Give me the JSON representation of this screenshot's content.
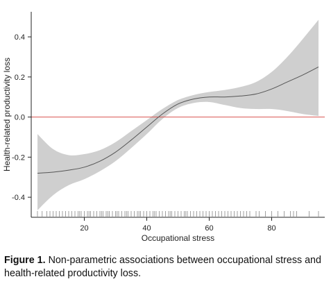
{
  "chart_data": {
    "type": "line",
    "title": "",
    "xlabel": "Occupational stress",
    "ylabel": "Health-related productivity loss",
    "xlim": [
      3,
      97
    ],
    "ylim": [
      -0.5,
      0.525
    ],
    "xticks": [
      "20",
      "40",
      "60",
      "80"
    ],
    "yticks": [
      "0.4",
      "0.2",
      "0.0",
      "-0.2",
      "-0.4"
    ],
    "grid": false,
    "legend": "none",
    "reference_line": {
      "y": 0.0,
      "color": "#d9534f"
    },
    "colors": {
      "fit": "#555555",
      "band": "#cfcfcf",
      "axis": "#222222"
    },
    "fit": {
      "x": [
        5,
        10,
        15,
        20,
        25,
        30,
        35,
        40,
        45,
        50,
        55,
        60,
        65,
        70,
        75,
        80,
        85,
        90,
        95
      ],
      "y": [
        -0.28,
        -0.275,
        -0.265,
        -0.25,
        -0.22,
        -0.175,
        -0.115,
        -0.05,
        0.015,
        0.065,
        0.09,
        0.1,
        0.1,
        0.105,
        0.115,
        0.14,
        0.175,
        0.21,
        0.25
      ],
      "lower": [
        -0.465,
        -0.39,
        -0.34,
        -0.31,
        -0.27,
        -0.22,
        -0.155,
        -0.085,
        -0.01,
        0.045,
        0.07,
        0.075,
        0.06,
        0.045,
        0.04,
        0.04,
        0.03,
        0.015,
        0.005
      ],
      "upper": [
        -0.085,
        -0.16,
        -0.19,
        -0.185,
        -0.165,
        -0.125,
        -0.07,
        -0.015,
        0.04,
        0.085,
        0.11,
        0.125,
        0.135,
        0.15,
        0.175,
        0.225,
        0.3,
        0.39,
        0.485
      ]
    },
    "rug_x": [
      5,
      6.5,
      8,
      9,
      10,
      11,
      12,
      13,
      14,
      15,
      16,
      17,
      18,
      18.5,
      19,
      20,
      21,
      21.5,
      22,
      23,
      24,
      25,
      25.5,
      26,
      27,
      27.5,
      28,
      29,
      30,
      30.5,
      31,
      32,
      33,
      33.5,
      34,
      35,
      36,
      37,
      37.5,
      38,
      39,
      40,
      41,
      42,
      42.5,
      43,
      44,
      45,
      46,
      47,
      47.5,
      48,
      49,
      50,
      51,
      52,
      52.5,
      53,
      54,
      55,
      56,
      57,
      58,
      59,
      60,
      61,
      62,
      63,
      64,
      65,
      66,
      67,
      68,
      69,
      70,
      71,
      72,
      73,
      75,
      76,
      78,
      80,
      82,
      84,
      86,
      87,
      88,
      92,
      95
    ]
  },
  "caption": {
    "label": "Figure 1.",
    "text": " Non-parametric associations between occupational stress and health-related productivity loss."
  }
}
